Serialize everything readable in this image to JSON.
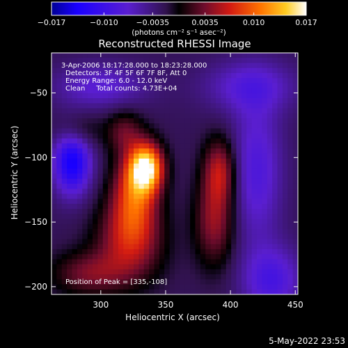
{
  "chart_data": {
    "type": "heatmap",
    "title": "Reconstructed RHESSI Image",
    "xlabel": "Heliocentric X (arcsec)",
    "ylabel": "Heliocentric Y (arcsec)",
    "xlim": [
      262,
      452
    ],
    "ylim": [
      -206,
      -19
    ],
    "x_ticks": [
      300,
      350,
      400,
      450
    ],
    "y_ticks": [
      -50,
      -100,
      -150,
      -200
    ],
    "colorbar": {
      "range": [
        -0.017,
        0.017
      ],
      "ticks": [
        "−0.017",
        "−0.010",
        "−0.0035",
        "0.0035",
        "0.010",
        "0.017"
      ],
      "tick_values": [
        -0.017,
        -0.01,
        -0.0035,
        0.0035,
        0.01,
        0.017
      ],
      "units_label": "(photons cm⁻² s⁻¹ asec⁻²)"
    },
    "annotations": [
      "3-Apr-2006 18:17:28.000 to 18:23:28.000",
      "Detectors: 3F 4F 5F 6F 7F 8F, Att 0",
      "Energy Range: 6.0 - 12.0 keV",
      "Clean     Total counts: 4.73E+04",
      "Position of Peak = [335,-108]"
    ],
    "peak_position": [
      335,
      -108
    ],
    "sources": [
      {
        "x": 335,
        "y": -108,
        "peak": 0.017,
        "sx": 9,
        "sy": 13
      },
      {
        "x": 326,
        "y": -128,
        "peak": 0.01,
        "sx": 12,
        "sy": 22
      },
      {
        "x": 322,
        "y": -165,
        "peak": 0.008,
        "sx": 18,
        "sy": 22
      },
      {
        "x": 392,
        "y": -110,
        "peak": 0.0078,
        "sx": 9,
        "sy": 18
      },
      {
        "x": 388,
        "y": -150,
        "peak": 0.0068,
        "sx": 11,
        "sy": 24
      },
      {
        "x": 318,
        "y": -80,
        "peak": 0.0048,
        "sx": 10,
        "sy": 12
      },
      {
        "x": 290,
        "y": -190,
        "peak": 0.0055,
        "sx": 20,
        "sy": 12
      },
      {
        "x": 282,
        "y": -80,
        "peak": 0.004,
        "sx": 12,
        "sy": 10
      },
      {
        "x": 278,
        "y": -103,
        "peak": -0.012,
        "sx": 10,
        "sy": 18
      },
      {
        "x": 420,
        "y": -110,
        "peak": -0.006,
        "sx": 14,
        "sy": 40
      },
      {
        "x": 432,
        "y": -195,
        "peak": -0.0065,
        "sx": 16,
        "sy": 18
      },
      {
        "x": 300,
        "y": -45,
        "peak": -0.005,
        "sx": 25,
        "sy": 12
      },
      {
        "x": 415,
        "y": -45,
        "peak": -0.005,
        "sx": 25,
        "sy": 14
      }
    ]
  },
  "footer": {
    "date": "5-May-2022 23:53"
  },
  "colors": {
    "background": "#000000",
    "foreground": "#ffffff"
  }
}
